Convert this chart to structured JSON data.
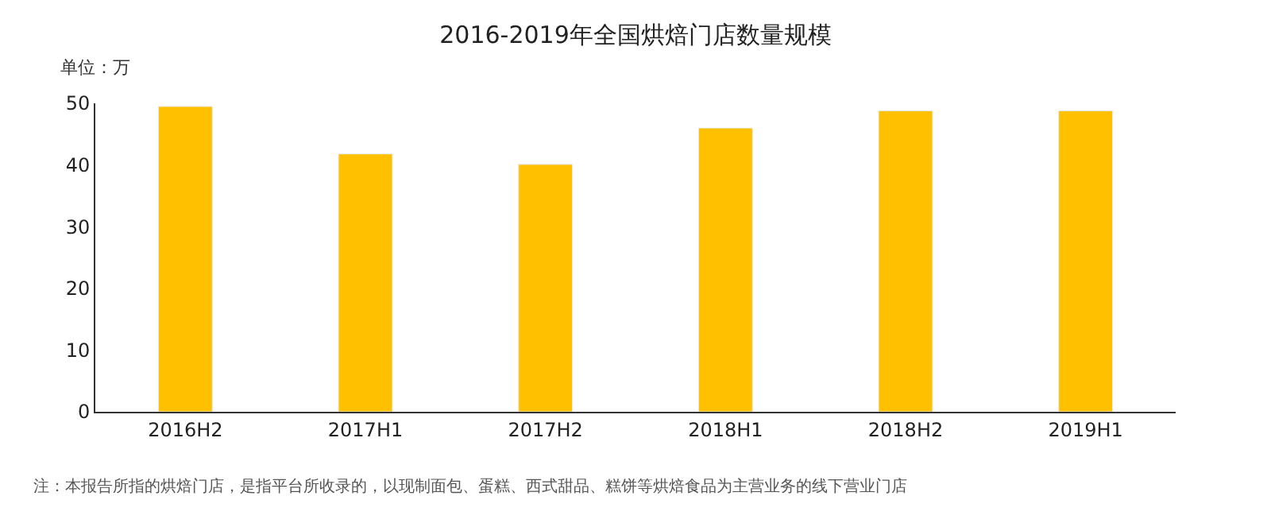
{
  "chart_data": {
    "type": "bar",
    "title": "2016-2019年全国烘焙门店数量规模",
    "ylabel": "单位：万",
    "categories": [
      "2016H2",
      "2017H1",
      "2017H2",
      "2018H1",
      "2018H2",
      "2019H1"
    ],
    "values": [
      49.5,
      41.8,
      40.1,
      46.0,
      48.8,
      48.8
    ],
    "color": "#ffc000",
    "ylim": [
      0,
      50
    ],
    "yticks": [
      0,
      10,
      20,
      30,
      40,
      50
    ],
    "annotations": [
      "注：本报告所指的烘焙门店，是指平台所收录的，以现制面包、蛋糕、西式甜品、糕饼等烘焙食品为主营业务的线下营业门店"
    ]
  }
}
